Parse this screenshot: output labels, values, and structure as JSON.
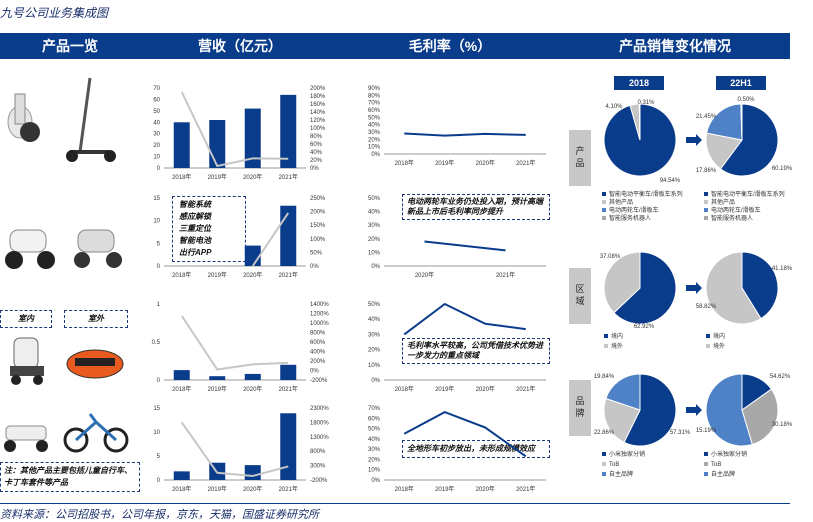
{
  "page": {
    "title": "九号公司业务集成图",
    "source": "资料来源：公司招股书，公司年报，京东，天猫，国盛证券研究所"
  },
  "header": {
    "col1": "产品一览",
    "col2": "营收（亿元）",
    "col3": "毛利率（%）",
    "col4": "产品销售变化情况"
  },
  "notes": {
    "ebike_features": [
      "智能系统",
      "感应解锁",
      "三重定位",
      "智能电池",
      "出行APP"
    ],
    "ebike_margin": "电动两轮车业务仍处投入期，预计高端新品上市后毛利率同步提升",
    "robot_indoor": "室内",
    "robot_outdoor": "室外",
    "robot_margin": "毛利率水平较高，公司凭借技术优势进一步发力的重点领域",
    "kart_note": "注：其他产品主要包括儿童自行车、卡丁车套件等产品",
    "kart_margin": "全地形车初步放出，未形成规模效应"
  },
  "sales_panel": {
    "year_a": "2018",
    "year_b": "22H1",
    "sections": [
      "产品",
      "区域",
      "品牌"
    ],
    "legends": {
      "product": [
        "智能电动平衡车/滑板车系列",
        "其他产品",
        "电动两轮车/滑板车",
        "智能服务机器人"
      ],
      "region": [
        "境内",
        "境外"
      ],
      "brand": [
        "小米独家分销",
        "ToB",
        "自主品牌"
      ]
    },
    "pie_labels": {
      "product_a": [
        "94.54%",
        "4.10%",
        "0.31%"
      ],
      "product_b": [
        "60.19%",
        "17.86%",
        "21.45%",
        "0.50%"
      ],
      "region_a": [
        "62.92%",
        "37.08%"
      ],
      "region_b": [
        "41.18%",
        "58.82%"
      ],
      "brand_a": [
        "57.31%",
        "22.86%",
        "19.84%"
      ],
      "brand_b": [
        "54.62%",
        "30.18%",
        "15.19%"
      ]
    }
  },
  "chart_data": [
    {
      "type": "bar",
      "title": "营收（亿元） - 平衡车/滑板车",
      "categories": [
        "2018年",
        "2019年",
        "2020年",
        "2021年"
      ],
      "series": [
        {
          "values": [
            40,
            42,
            52,
            64
          ]
        },
        {
          "values": [
            1.9,
            0.05,
            0.24,
            0.23
          ]
        }
      ],
      "ylim": [
        0,
        70
      ],
      "y2lim": [
        0,
        2
      ],
      "yticks": [
        "0",
        "10",
        "20",
        "30",
        "40",
        "50",
        "60",
        "70"
      ],
      "y2ticks": [
        "0%",
        "20%",
        "40%",
        "60%",
        "80%",
        "100%",
        "120%",
        "140%",
        "160%",
        "180%",
        "200%"
      ]
    },
    {
      "type": "line",
      "title": "毛利率（%） - 平衡车/滑板车",
      "categories": [
        "2018年",
        "2019年",
        "2020年",
        "2021年"
      ],
      "series": [
        {
          "values": [
            0.28,
            0.25,
            0.275,
            0.26
          ]
        }
      ],
      "ylim": [
        0,
        0.9
      ],
      "yticks": [
        "0%",
        "10%",
        "20%",
        "30%",
        "40%",
        "50%",
        "60%",
        "70%",
        "80%",
        "90%"
      ]
    },
    {
      "type": "bar",
      "title": "营收（亿元） - 电动两轮车",
      "categories": [
        "2018年",
        "2019年",
        "2020年",
        "2021年"
      ],
      "series": [
        {
          "values": [
            0,
            0,
            4.5,
            13.3
          ]
        },
        {
          "values": [
            null,
            null,
            0,
            1.95
          ]
        }
      ],
      "ylim": [
        0,
        15
      ],
      "y2lim": [
        0,
        2.5
      ],
      "yticks": [
        "0",
        "5",
        "10",
        "15"
      ],
      "y2ticks": [
        "0%",
        "50%",
        "100%",
        "150%",
        "200%",
        "250%"
      ]
    },
    {
      "type": "line",
      "title": "毛利率（%） - 电动两轮车",
      "categories": [
        "2020年",
        "2021年"
      ],
      "series": [
        {
          "values": [
            0.18,
            0.115
          ]
        }
      ],
      "ylim": [
        0,
        0.5
      ],
      "yticks": [
        "0%",
        "10%",
        "20%",
        "30%",
        "40%",
        "50%"
      ]
    },
    {
      "type": "bar",
      "title": "营收（亿元） - 服务机器人",
      "categories": [
        "2018年",
        "2019年",
        "2020年",
        "2021年"
      ],
      "series": [
        {
          "values": [
            0.13,
            0.05,
            0.08,
            0.2
          ]
        },
        {
          "values": [
            11.5,
            0.2,
            1.3,
            1.6
          ]
        }
      ],
      "ylim": [
        0,
        1
      ],
      "y2lim": [
        -2,
        14
      ],
      "yticks": [
        "0",
        "0.5",
        "1"
      ],
      "y2ticks": [
        "-200%",
        "0%",
        "200%",
        "400%",
        "600%",
        "800%",
        "1000%",
        "1200%",
        "1400%"
      ]
    },
    {
      "type": "line",
      "title": "毛利率（%） - 服务机器人",
      "categories": [
        "2018年",
        "2019年",
        "2020年",
        "2021年"
      ],
      "series": [
        {
          "values": [
            0.3,
            0.5,
            0.37,
            0.335
          ]
        }
      ],
      "ylim": [
        0,
        0.5
      ],
      "yticks": [
        "0%",
        "10%",
        "20%",
        "30%",
        "40%",
        "50%"
      ]
    },
    {
      "type": "bar",
      "title": "营收（亿元） - 其他产品",
      "categories": [
        "2018年",
        "2019年",
        "2020年",
        "2021年"
      ],
      "series": [
        {
          "values": [
            1.8,
            3.6,
            3.1,
            13.9
          ]
        },
        {
          "values": [
            18.0,
            0.5,
            -0.6,
            2.7
          ]
        }
      ],
      "ylim": [
        0,
        15
      ],
      "y2lim": [
        -2,
        23
      ],
      "yticks": [
        "0",
        "5",
        "10",
        "15"
      ],
      "y2ticks": [
        "-200%",
        "300%",
        "800%",
        "1300%",
        "1800%",
        "2300%"
      ]
    },
    {
      "type": "line",
      "title": "毛利率（%） - 其他产品",
      "categories": [
        "2018年",
        "2019年",
        "2020年",
        "2021年"
      ],
      "series": [
        {
          "values": [
            0.45,
            0.66,
            0.51,
            0.23
          ]
        }
      ],
      "ylim": [
        0,
        0.7
      ],
      "yticks": [
        "0%",
        "10%",
        "20%",
        "30%",
        "40%",
        "50%",
        "60%",
        "70%"
      ]
    },
    {
      "type": "pie",
      "title": "产品 2018",
      "categories": [
        "智能电动平衡车/滑板车系列",
        "其他产品",
        "电动两轮车/滑板车",
        "智能服务机器人"
      ],
      "values": [
        94.54,
        4.1,
        0,
        0.31
      ]
    },
    {
      "type": "pie",
      "title": "产品 22H1",
      "categories": [
        "智能电动平衡车/滑板车系列",
        "其他产品",
        "电动两轮车/滑板车",
        "智能服务机器人"
      ],
      "values": [
        60.19,
        17.86,
        21.45,
        0.5
      ]
    },
    {
      "type": "pie",
      "title": "区域 2018",
      "categories": [
        "境内",
        "境外"
      ],
      "values": [
        62.92,
        37.08
      ]
    },
    {
      "type": "pie",
      "title": "区域 22H1",
      "categories": [
        "境内",
        "境外"
      ],
      "values": [
        41.18,
        58.82
      ]
    },
    {
      "type": "pie",
      "title": "品牌 2018",
      "categories": [
        "小米独家分销",
        "ToB",
        "自主品牌"
      ],
      "values": [
        57.31,
        22.86,
        19.84
      ]
    },
    {
      "type": "pie",
      "title": "品牌 22H1",
      "categories": [
        "小米独家分销",
        "ToB",
        "自主品牌"
      ],
      "values": [
        15.19,
        30.18,
        54.62
      ]
    }
  ]
}
